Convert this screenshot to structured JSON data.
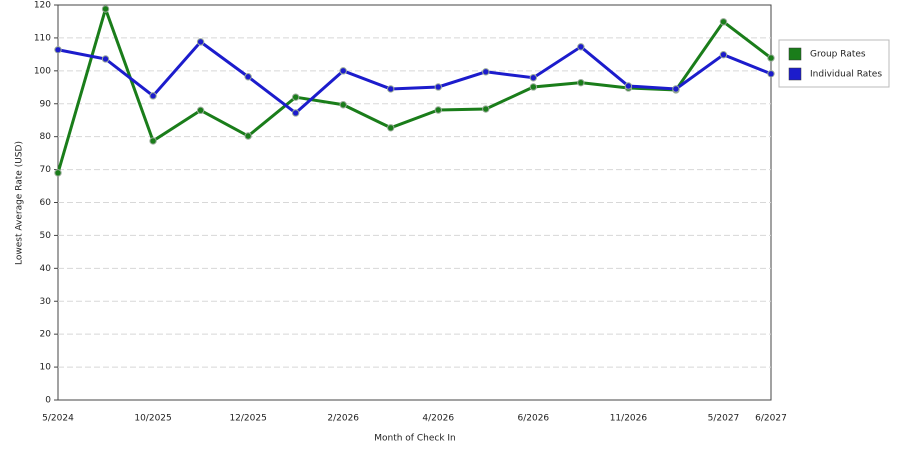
{
  "chart_data": {
    "type": "line",
    "x_label": "Month of Check In",
    "y_label": "Lowest Average Rate (USD)",
    "categories": [
      "5/2024",
      null,
      "10/2025",
      null,
      "12/2025",
      null,
      "2/2026",
      null,
      "4/2026",
      null,
      "6/2026",
      null,
      "11/2026",
      null,
      "5/2027",
      "6/2027"
    ],
    "series": [
      {
        "name": "Group Rates",
        "color": "#1a7d1a",
        "values": [
          69,
          118.8,
          78.7,
          88,
          80.2,
          92,
          89.7,
          82.7,
          88.1,
          88.4,
          95.1,
          96.4,
          94.8,
          94.2,
          114.9,
          103.9
        ]
      },
      {
        "name": "Individual Rates",
        "color": "#1c1ccc",
        "values": [
          106.4,
          103.6,
          92.4,
          108.8,
          98.2,
          87.2,
          100,
          94.5,
          95.1,
          99.7,
          97.9,
          107.3,
          95.4,
          94.5,
          104.9,
          99.1
        ]
      }
    ],
    "ylim": [
      0,
      120
    ],
    "yticks": [
      0,
      10,
      20,
      30,
      40,
      50,
      60,
      70,
      80,
      90,
      100,
      110,
      120
    ],
    "grid": true,
    "legend": "right"
  }
}
